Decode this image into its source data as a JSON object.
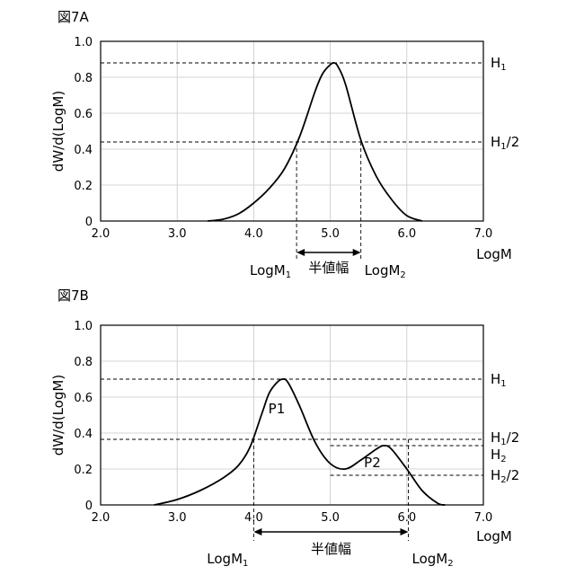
{
  "chart_data": [
    {
      "id": "A",
      "type": "line",
      "title": "図7A",
      "xlabel": "LogM",
      "ylabel": "dW/d(LogM)",
      "xlim": [
        2.0,
        7.0
      ],
      "ylim": [
        0,
        1.0
      ],
      "xticks": [
        "2.0",
        "3.0",
        "4.0",
        "5.0",
        "6.0",
        "7.0"
      ],
      "yticks": [
        "0",
        "0.2",
        "0.4",
        "0.6",
        "0.8",
        "1.0"
      ],
      "grid": true,
      "x": [
        3.4,
        3.6,
        3.8,
        4.0,
        4.2,
        4.4,
        4.6,
        4.8,
        4.9,
        5.0,
        5.05,
        5.1,
        5.2,
        5.4,
        5.6,
        5.8,
        6.0,
        6.2
      ],
      "y": [
        0,
        0.01,
        0.04,
        0.1,
        0.18,
        0.29,
        0.47,
        0.72,
        0.82,
        0.87,
        0.88,
        0.86,
        0.76,
        0.45,
        0.25,
        0.12,
        0.03,
        0
      ],
      "hlines": [
        {
          "y": 0.88,
          "label": "H",
          "sub": "1",
          "suffix": ""
        },
        {
          "y": 0.44,
          "label": "H",
          "sub": "1",
          "suffix": "/2"
        }
      ],
      "vmarks": [
        {
          "x": 4.56,
          "label": "LogM",
          "sub": "1"
        },
        {
          "x": 5.4,
          "label": "LogM",
          "sub": "2"
        }
      ],
      "width_label": "半値幅"
    },
    {
      "id": "B",
      "type": "line",
      "title": "図7B",
      "xlabel": "LogM",
      "ylabel": "dW/d(LogM)",
      "xlim": [
        2.0,
        7.0
      ],
      "ylim": [
        0,
        1.0
      ],
      "xticks": [
        "2.0",
        "3.0",
        "4.0",
        "5.0",
        "6.0",
        "7.0"
      ],
      "yticks": [
        "0",
        "0.2",
        "0.4",
        "0.6",
        "0.8",
        "1.0"
      ],
      "grid": true,
      "x": [
        2.7,
        3.0,
        3.3,
        3.6,
        3.8,
        3.95,
        4.1,
        4.2,
        4.3,
        4.38,
        4.45,
        4.6,
        4.8,
        5.0,
        5.2,
        5.4,
        5.6,
        5.7,
        5.8,
        6.0,
        6.2,
        6.4,
        6.5
      ],
      "y": [
        0,
        0.03,
        0.08,
        0.15,
        0.22,
        0.32,
        0.5,
        0.62,
        0.68,
        0.7,
        0.68,
        0.55,
        0.35,
        0.23,
        0.2,
        0.25,
        0.31,
        0.33,
        0.31,
        0.2,
        0.08,
        0.01,
        0
      ],
      "hlines": [
        {
          "y": 0.7,
          "label": "H",
          "sub": "1",
          "suffix": ""
        },
        {
          "y": 0.365,
          "label": "H",
          "sub": "1",
          "suffix": "/2"
        },
        {
          "y": 0.33,
          "label": "H",
          "sub": "2",
          "suffix": ""
        },
        {
          "y": 0.165,
          "label": "H",
          "sub": "2",
          "suffix": "/2"
        }
      ],
      "vmarks": [
        {
          "x": 4.0,
          "label": "LogM",
          "sub": "1"
        },
        {
          "x": 6.02,
          "label": "LogM",
          "sub": "2"
        }
      ],
      "peaks": [
        {
          "x": 4.3,
          "y": 0.51,
          "label": "P1"
        },
        {
          "x": 5.55,
          "y": 0.21,
          "label": "P2"
        }
      ],
      "width_label": "半値幅"
    }
  ]
}
